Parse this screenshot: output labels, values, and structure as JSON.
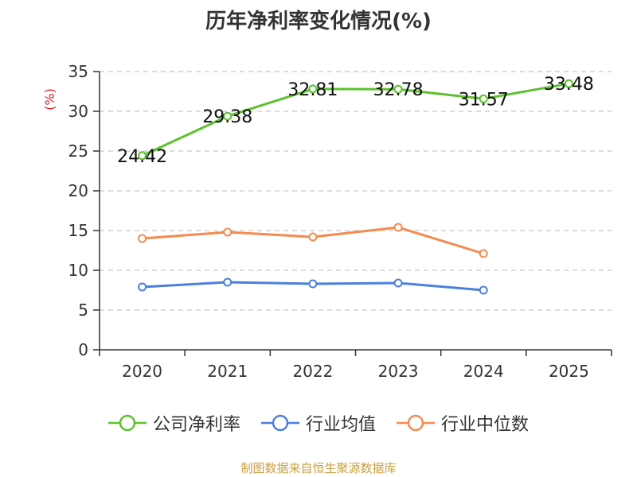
{
  "chart_data": {
    "type": "line",
    "title": "历年净利率变化情况(%)",
    "ylabel": "(%)",
    "xlabel": "",
    "categories": [
      "2020",
      "2021",
      "2022",
      "2023",
      "2024",
      "2025"
    ],
    "ylim": [
      0,
      35
    ],
    "yticks": [
      0,
      5,
      10,
      15,
      20,
      25,
      30,
      35
    ],
    "grid": true,
    "legend_position": "bottom",
    "series": [
      {
        "name": "公司净利率",
        "color": "#5cc12e",
        "values": [
          24.42,
          29.38,
          32.81,
          32.78,
          31.57,
          33.48
        ],
        "show_labels": true
      },
      {
        "name": "行业均值",
        "color": "#4a80dc",
        "values": [
          7.9,
          8.5,
          8.3,
          8.4,
          7.5,
          null
        ],
        "show_labels": false
      },
      {
        "name": "行业中位数",
        "color": "#f58a4e",
        "values": [
          14.0,
          14.8,
          14.2,
          15.4,
          12.1,
          null
        ],
        "show_labels": false
      }
    ]
  },
  "source": "制图数据来自恒生聚源数据库"
}
